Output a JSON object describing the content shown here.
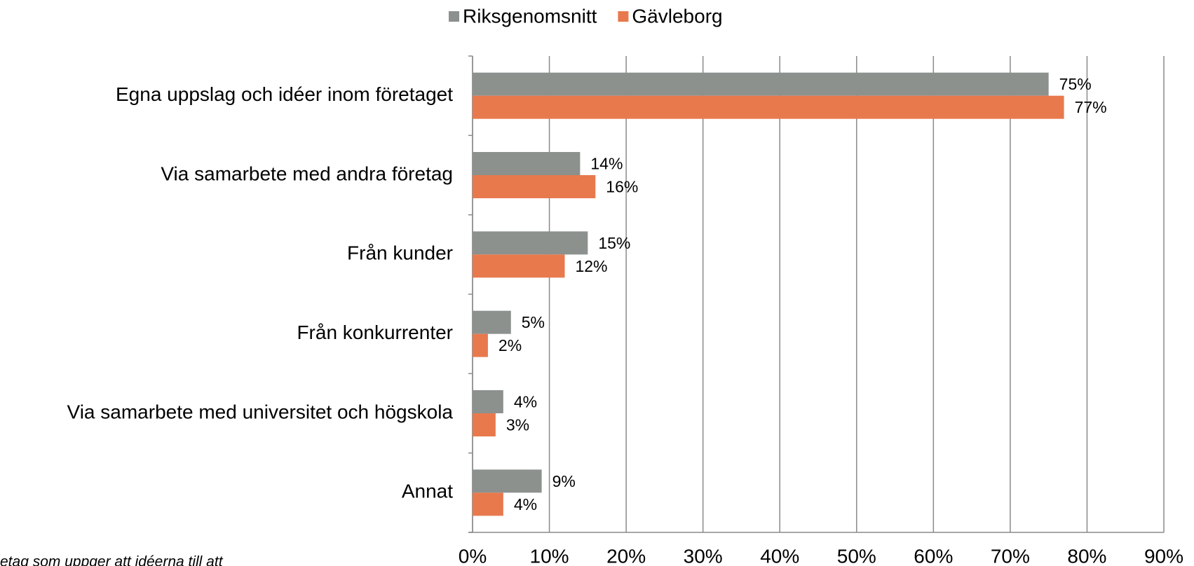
{
  "chart_data": {
    "type": "barh",
    "categories": [
      "Egna uppslag och idéer inom företaget",
      "Via samarbete med andra företag",
      "Från kunder",
      "Från konkurrenter",
      "Via samarbete med universitet och högskola",
      "Annat"
    ],
    "series": [
      {
        "name": "Riksgenomsnitt",
        "color": "#8c918e",
        "values": [
          75,
          14,
          15,
          5,
          4,
          9
        ],
        "value_labels": [
          "75%",
          "14%",
          "15%",
          "5%",
          "4%",
          "9%"
        ]
      },
      {
        "name": "Gävleborg",
        "color": "#e8794d",
        "values": [
          77,
          16,
          12,
          2,
          3,
          4
        ],
        "value_labels": [
          "77%",
          "16%",
          "12%",
          "2%",
          "3%",
          "4%"
        ]
      }
    ],
    "xlim": [
      0,
      90
    ],
    "xticks": [
      {
        "value": 0,
        "label": "0%"
      },
      {
        "value": 10,
        "label": "10%"
      },
      {
        "value": 20,
        "label": "20%"
      },
      {
        "value": 30,
        "label": "30%"
      },
      {
        "value": 40,
        "label": "40%"
      },
      {
        "value": 50,
        "label": "50%"
      },
      {
        "value": 60,
        "label": "60%"
      },
      {
        "value": 70,
        "label": "70%"
      },
      {
        "value": 80,
        "label": "80%"
      },
      {
        "value": 90,
        "label": "90%"
      }
    ],
    "grid": true,
    "legend": "top",
    "footnote": "etag som uppger att idéerna till att"
  }
}
